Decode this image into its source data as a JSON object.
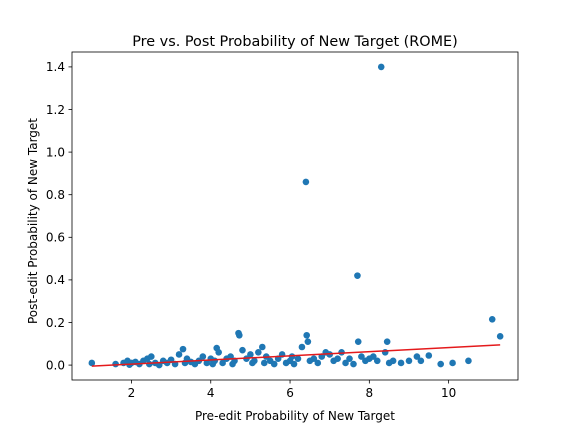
{
  "chart_data": {
    "type": "scatter",
    "title": "Pre vs. Post Probability of New Target (ROME)",
    "xlabel": "Pre-edit Probability of New Target",
    "ylabel": "Post-edit Probability of New Target",
    "xlim": [
      0.5,
      11.75
    ],
    "ylim": [
      -0.07,
      1.47
    ],
    "xticks": [
      2,
      4,
      6,
      8,
      10
    ],
    "yticks": [
      0.0,
      0.2,
      0.4,
      0.6,
      0.8,
      1.0,
      1.2,
      1.4
    ],
    "xtick_labels": [
      "2",
      "4",
      "6",
      "8",
      "10"
    ],
    "ytick_labels": [
      "0.0",
      "0.2",
      "0.4",
      "0.6",
      "0.8",
      "1.0",
      "1.2",
      "1.4"
    ],
    "point_color": "#1f77b4",
    "fit_line_color": "#e41a1c",
    "grid": false,
    "series": [
      {
        "points": [
          [
            1.0,
            0.01
          ],
          [
            1.6,
            0.005
          ],
          [
            1.8,
            0.01
          ],
          [
            1.9,
            0.02
          ],
          [
            1.95,
            0.002
          ],
          [
            2.0,
            0.01
          ],
          [
            2.1,
            0.015
          ],
          [
            2.2,
            0.005
          ],
          [
            2.3,
            0.02
          ],
          [
            2.4,
            0.03
          ],
          [
            2.45,
            0.005
          ],
          [
            2.5,
            0.04
          ],
          [
            2.6,
            0.01
          ],
          [
            2.7,
            0.0
          ],
          [
            2.8,
            0.02
          ],
          [
            2.9,
            0.01
          ],
          [
            3.0,
            0.025
          ],
          [
            3.1,
            0.005
          ],
          [
            3.2,
            0.05
          ],
          [
            3.3,
            0.075
          ],
          [
            3.35,
            0.01
          ],
          [
            3.4,
            0.03
          ],
          [
            3.5,
            0.015
          ],
          [
            3.6,
            0.005
          ],
          [
            3.7,
            0.02
          ],
          [
            3.8,
            0.04
          ],
          [
            3.9,
            0.01
          ],
          [
            4.0,
            0.03
          ],
          [
            4.05,
            0.005
          ],
          [
            4.1,
            0.02
          ],
          [
            4.15,
            0.08
          ],
          [
            4.2,
            0.06
          ],
          [
            4.3,
            0.01
          ],
          [
            4.4,
            0.03
          ],
          [
            4.5,
            0.04
          ],
          [
            4.55,
            0.005
          ],
          [
            4.6,
            0.02
          ],
          [
            4.7,
            0.15
          ],
          [
            4.72,
            0.14
          ],
          [
            4.8,
            0.07
          ],
          [
            4.9,
            0.03
          ],
          [
            5.0,
            0.05
          ],
          [
            5.05,
            0.01
          ],
          [
            5.1,
            0.02
          ],
          [
            5.2,
            0.06
          ],
          [
            5.3,
            0.085
          ],
          [
            5.35,
            0.01
          ],
          [
            5.4,
            0.04
          ],
          [
            5.5,
            0.02
          ],
          [
            5.6,
            0.005
          ],
          [
            5.7,
            0.03
          ],
          [
            5.8,
            0.05
          ],
          [
            5.9,
            0.01
          ],
          [
            6.0,
            0.02
          ],
          [
            6.05,
            0.04
          ],
          [
            6.1,
            0.005
          ],
          [
            6.2,
            0.03
          ],
          [
            6.3,
            0.085
          ],
          [
            6.4,
            0.86
          ],
          [
            6.42,
            0.14
          ],
          [
            6.45,
            0.11
          ],
          [
            6.5,
            0.02
          ],
          [
            6.6,
            0.03
          ],
          [
            6.7,
            0.01
          ],
          [
            6.8,
            0.04
          ],
          [
            6.9,
            0.06
          ],
          [
            7.0,
            0.05
          ],
          [
            7.1,
            0.02
          ],
          [
            7.2,
            0.03
          ],
          [
            7.3,
            0.06
          ],
          [
            7.4,
            0.01
          ],
          [
            7.5,
            0.03
          ],
          [
            7.6,
            0.005
          ],
          [
            7.7,
            0.42
          ],
          [
            7.72,
            0.11
          ],
          [
            7.8,
            0.04
          ],
          [
            7.9,
            0.02
          ],
          [
            8.0,
            0.03
          ],
          [
            8.1,
            0.04
          ],
          [
            8.2,
            0.02
          ],
          [
            8.3,
            1.4
          ],
          [
            8.4,
            0.06
          ],
          [
            8.45,
            0.11
          ],
          [
            8.5,
            0.01
          ],
          [
            8.6,
            0.02
          ],
          [
            8.8,
            0.01
          ],
          [
            9.0,
            0.02
          ],
          [
            9.2,
            0.04
          ],
          [
            9.3,
            0.02
          ],
          [
            9.5,
            0.045
          ],
          [
            9.8,
            0.005
          ],
          [
            10.1,
            0.01
          ],
          [
            10.5,
            0.02
          ],
          [
            11.1,
            0.215
          ],
          [
            11.3,
            0.135
          ]
        ]
      }
    ],
    "fit_line": {
      "x": [
        1.0,
        11.3
      ],
      "y": [
        -0.005,
        0.095
      ]
    }
  }
}
